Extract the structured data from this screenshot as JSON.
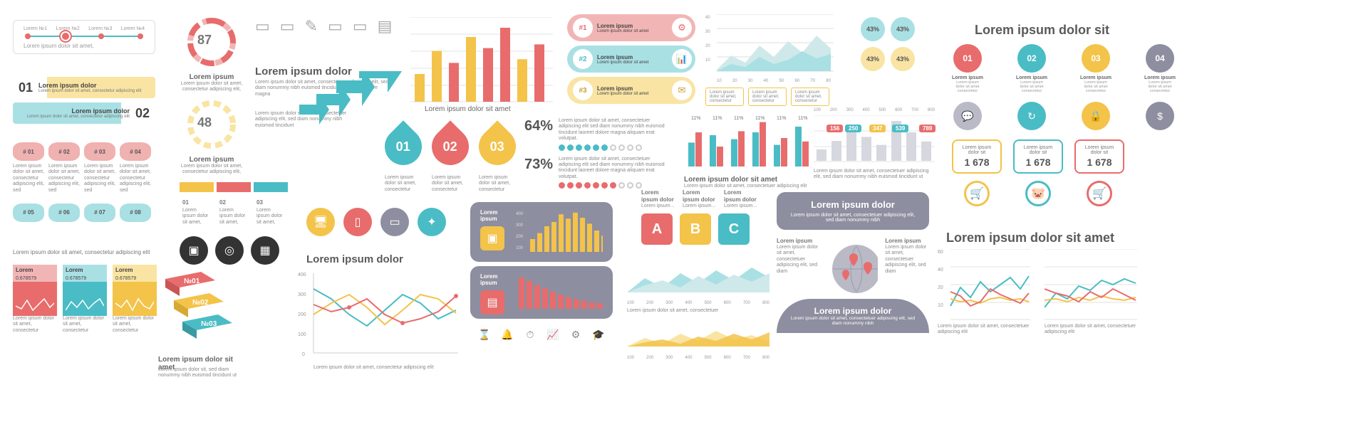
{
  "colors": {
    "red": "#e86c6c",
    "teal": "#4abcc5",
    "yellow": "#f3c34a",
    "grey": "#8d8e9f",
    "light": "#e8e8ee",
    "dark": "#333333"
  },
  "timeline": {
    "labels": [
      "Lorem №1",
      "Lorem №2",
      "Lorem №3",
      "Lorem №4"
    ],
    "active_index": 1,
    "dot_color": "#e86c6c",
    "line_color": "#4abcc5",
    "caption": "Lorem ipsum dolor sit amet,"
  },
  "ribbons": [
    {
      "num": "01",
      "title": "Lorem ipsum dolor",
      "desc": "Lorem ipsum dolor sit amet, consectetur adipiscing elit",
      "bg": "#f9e4a3",
      "num_color": "#333"
    },
    {
      "num": "02",
      "title": "Lorem ipsum dolor",
      "desc": "Lorem ipsum dolor sit amet, consectetur adipiscing elit",
      "bg": "#a9e0e4",
      "num_color": "#333",
      "align": "right"
    }
  ],
  "cylinders": {
    "row1": [
      "# 01",
      "# 02",
      "# 03",
      "# 04"
    ],
    "row1_col": "#f0b1b1",
    "row2": [
      "# 05",
      "# 06",
      "# 07",
      "# 08"
    ],
    "row2_col": "#a9e0e4"
  },
  "spark_cards": {
    "caption": "Lorem ipsum dolor sit amet, consectetur adipiscing elit",
    "items": [
      {
        "label": "Lorem",
        "value": "0.678579",
        "color": "#e86c6c",
        "pts": [
          10,
          6,
          18,
          4,
          12,
          20,
          8,
          14
        ]
      },
      {
        "label": "Lorem",
        "value": "0.678579",
        "color": "#4abcc5",
        "pts": [
          4,
          16,
          8,
          18,
          6,
          14,
          20,
          10
        ]
      },
      {
        "label": "Lorem",
        "value": "0.678579",
        "color": "#f3c34a",
        "pts": [
          14,
          8,
          18,
          4,
          20,
          10,
          6,
          16
        ]
      }
    ],
    "footer": "Lorem ipsum dolor sit amet, consectetur"
  },
  "gauges": [
    {
      "value": "87",
      "color": "#e86c6c",
      "title": "Lorem ipsum",
      "desc": "Lorem ipsum dolor sit amet, consectetur adipiscing elit,"
    },
    {
      "value": "48",
      "color": "#f3c34a",
      "title": "Lorem ipsum",
      "desc": "Lorem ipsum dolor sit amet, consectetur adipiscing elit,"
    }
  ],
  "fold_tabs": {
    "items": [
      {
        "num": "01",
        "top": "#f3c34a",
        "bot": "#fff"
      },
      {
        "num": "02",
        "top": "#e86c6c",
        "bot": "#fff"
      },
      {
        "num": "03",
        "top": "#4abcc5",
        "bot": "#fff"
      }
    ],
    "text": "Lorem ipsum dolor sit amet,"
  },
  "iso_blocks": {
    "items": [
      {
        "label": "№01",
        "color": "#e86c6c"
      },
      {
        "label": "№02",
        "color": "#f3c34a"
      },
      {
        "label": "№03",
        "color": "#4abcc5"
      }
    ],
    "title": "Lorem ipsum dolor sit amet",
    "desc": "Lorem ipsum dolor sit, sed diam nonummy nibh euismod tincidunt ut"
  },
  "icon_row": {
    "title": "Lorem ipsum dolor",
    "desc": "Lorem ipsum dolor sit amet, consectetuer adipiscing elit, sed diam nonummy nibh euismod tincidunt ut laoreet dolore magna",
    "line_icons": [
      "▭",
      "▭",
      "✎",
      "▭",
      "▭",
      "▤"
    ],
    "icons": [
      {
        "bg": "#333333",
        "g": "▣"
      },
      {
        "bg": "#333333",
        "g": "◎"
      },
      {
        "bg": "#333333",
        "g": "▦"
      },
      {
        "bg": "#f3c34a",
        "g": "🖥"
      },
      {
        "bg": "#e86c6c",
        "g": "▯"
      },
      {
        "bg": "#8d8e9f",
        "g": "▭"
      },
      {
        "bg": "#4abcc5",
        "g": "✦"
      }
    ]
  },
  "arrow_steps": {
    "color": "#4abcc5",
    "icons": [
      "▤",
      "◎",
      "▣",
      "▦"
    ],
    "desc": "Lorem ipsum dolor sit amet, consectetuer adipiscing elit, sed diam nonummy nibh euismod tincidunt"
  },
  "line_chart": {
    "title": "Lorem ipsum dolor",
    "ylabels": [
      "400",
      "300",
      "200",
      "100",
      "0"
    ],
    "ylim": [
      0,
      400
    ],
    "series": [
      {
        "color": "#4abcc5",
        "pts": [
          310,
          260,
          180,
          120,
          200,
          280,
          240,
          160,
          200
        ]
      },
      {
        "color": "#f3c34a",
        "pts": [
          180,
          240,
          280,
          210,
          130,
          200,
          280,
          260,
          190
        ]
      },
      {
        "color": "#e86c6c",
        "pts": [
          240,
          200,
          220,
          260,
          180,
          140,
          160,
          200,
          270
        ],
        "markers": true
      }
    ],
    "footer": "Lorem ipsum dolor sit amet, consectetur adipiscing elit"
  },
  "bar_grid": {
    "bars": [
      30,
      55,
      42,
      70,
      58,
      80,
      46,
      62
    ],
    "colors": [
      "#f3c34a",
      "#f3c34a",
      "#e86c6c",
      "#f3c34a",
      "#e86c6c",
      "#e86c6c",
      "#f3c34a",
      "#e86c6c"
    ],
    "caption": "Lorem ipsum dolor sit amet"
  },
  "drops": [
    {
      "label": "01",
      "fill": "#4abcc5"
    },
    {
      "label": "02",
      "fill": "#e86c6c"
    },
    {
      "label": "03",
      "fill": "#f3c34a"
    }
  ],
  "drops_desc": "Lorem ipsum dolor sit amet, consectetur",
  "pills": {
    "items": [
      {
        "k": "#1",
        "title": "Lorem ipsum",
        "desc": "Lorem ipsum dolor sit amet",
        "bg": "#f2b5b5",
        "icon": "⚙",
        "icon_col": "#e86c6c"
      },
      {
        "k": "#2",
        "title": "Lorem ipsum",
        "desc": "Lorem ipsum dolor sit amet",
        "bg": "#a9e0e4",
        "icon": "📊",
        "icon_col": "#4abcc5"
      },
      {
        "k": "#3",
        "title": "Lorem ipsum",
        "desc": "Lorem ipsum dolor sit amet",
        "bg": "#f9e4a3",
        "icon": "✉",
        "icon_col": "#f3c34a"
      }
    ]
  },
  "pct_rows": [
    {
      "pct": "64%",
      "on": "#4abcc5",
      "filled": 6,
      "total": 10,
      "desc": "Lorem ipsum dolor sit amet, consectetuer adipiscing elit sed diam nonummy nibh euismod tincidunt laoreet dolore magna aliquam erat volutpat."
    },
    {
      "pct": "73%",
      "on": "#e86c6c",
      "filled": 7,
      "total": 10,
      "desc": "Lorem ipsum dolor sit amet, consectetuer adipiscing elit sed diam nonummy nibh euismod tincidunt laoreet dolore magna aliquam erat volutpat."
    }
  ],
  "area_chart": {
    "ylabels": [
      "40",
      "30",
      "20",
      "10"
    ],
    "xlabels": [
      "10",
      "20",
      "30",
      "40",
      "50",
      "60",
      "70",
      "80"
    ],
    "series": [
      {
        "fill": "#cfe9ea",
        "pts": [
          12,
          24,
          16,
          30,
          20,
          34,
          24,
          38,
          20
        ]
      },
      {
        "fill": "#a9e0e4",
        "pts": [
          6,
          14,
          10,
          22,
          14,
          18,
          28,
          20,
          26
        ]
      }
    ],
    "footers": [
      "Lorem ipsum dolor sit amet, consectetur",
      "Lorem ipsum dolor sit amet, consectetur",
      "Lorem ipsum dolor sit amet, consectetur"
    ]
  },
  "grouped_bars": {
    "labels": [
      "11%",
      "11%",
      "11%",
      "11%",
      "11%",
      "11%"
    ],
    "groups": [
      [
        42,
        60
      ],
      [
        55,
        35
      ],
      [
        48,
        62
      ],
      [
        60,
        78
      ],
      [
        38,
        50
      ],
      [
        70,
        44
      ]
    ],
    "colors": [
      "#4abcc5",
      "#e86c6c"
    ],
    "caption": "Lorem ipsum dolor sit amet",
    "desc": "Lorem ipsum dolor sit amet, consectetuer adipiscing elit"
  },
  "abc": {
    "title": "Lorem ipsum dolor",
    "sub": "Lorem ipsum...",
    "tiles": [
      {
        "t": "A",
        "c": "#e86c6c"
      },
      {
        "t": "B",
        "c": "#f3c34a"
      },
      {
        "t": "C",
        "c": "#4abcc5"
      }
    ]
  },
  "panel_hist": {
    "title": "Lorem ipsum",
    "ylabels": [
      "400",
      "300",
      "200",
      "100"
    ],
    "bars": [
      30,
      44,
      60,
      70,
      88,
      78,
      92,
      80,
      66,
      50,
      38,
      28
    ],
    "bar_color": "#f3c34a",
    "icon": "▣"
  },
  "panel_bars": {
    "title": "Lorem ipsum",
    "bars": [
      80,
      72,
      60,
      52,
      44,
      36,
      30,
      24,
      20,
      16,
      14,
      12
    ],
    "bar_color": "#e86c6c",
    "icon": "▤"
  },
  "mini_icons": [
    "⌛",
    "🔔",
    "⏱",
    "📈",
    "⚙",
    "🎓"
  ],
  "callout_chart": {
    "xlabels": [
      "100",
      "200",
      "300",
      "400",
      "500",
      "600",
      "700",
      "800"
    ],
    "bars": [
      20,
      35,
      60,
      42,
      28,
      70,
      50,
      34
    ],
    "callouts": [
      {
        "v": "156",
        "c": "#e86c6c",
        "x": 18
      },
      {
        "v": "250",
        "c": "#4abcc5",
        "x": 44
      },
      {
        "v": "347",
        "c": "#f3c34a",
        "x": 78
      },
      {
        "v": "539",
        "c": "#4abcc5",
        "x": 110
      },
      {
        "v": "789",
        "c": "#e86c6c",
        "x": 148
      }
    ],
    "desc": "Lorem ipsum dolor sit amet, consectetuer adipiscing elit, sed diam nonummy nibh euismod tincidunt ut"
  },
  "pbub_grid": {
    "items": [
      {
        "v": "43%",
        "c": "#4abcc5"
      },
      {
        "v": "43%",
        "c": "#4abcc5"
      },
      {
        "v": "43%",
        "c": "#f3c34a"
      },
      {
        "v": "43%",
        "c": "#f3c34a"
      }
    ]
  },
  "dbl_area": {
    "xlabels": [
      "100",
      "200",
      "300",
      "400",
      "500",
      "600",
      "700",
      "800"
    ],
    "top": {
      "fill": "#4abcc5",
      "pts": [
        8,
        22,
        12,
        28,
        16,
        30,
        20,
        34,
        24
      ]
    },
    "bot": {
      "fill": "#f3c34a",
      "pts": [
        6,
        18,
        10,
        24,
        14,
        20,
        26,
        16,
        22
      ]
    },
    "desc": "Lorem ipsum dolor sit amet, consectetuer"
  },
  "globe": {
    "title": "Lorem ipsum dolor",
    "desc": "Lorem ipsum dolor sit amet, consectetuer adipiscing elit, sed diam nonummy nibh",
    "pin_color": "#e86c6c",
    "globe_color": "#b9bac6",
    "panel_title": "Lorem ipsum dolor",
    "panel_desc": "Lorem ipsum dolor sit amet, consectetuer adipiscing elit, sed diam nonummy nibh",
    "side_title": "Lorem ipsum",
    "side_desc": "Lorem ipsum dolor sit amet, consectetuer adipiscing elit, sed diam"
  },
  "title_right": "Lorem ipsum dolor sit",
  "steps4": {
    "items": [
      {
        "n": "01",
        "c": "#e86c6c",
        "icon": "💬",
        "ic": "#e86c6c"
      },
      {
        "n": "02",
        "c": "#4abcc5",
        "icon": "↻",
        "ic": "#4abcc5"
      },
      {
        "n": "03",
        "c": "#f3c34a",
        "icon": "🔒",
        "ic": "#f3c34a"
      },
      {
        "n": "04",
        "c": "#8d8e9f",
        "icon": "$",
        "ic": "#8d8e9f"
      }
    ],
    "t": "Lorem ipsum",
    "d": "Lorem ipsum dolor sit amet consectetur"
  },
  "prices": {
    "items": [
      {
        "v": "1 678",
        "border": "#f3c34a",
        "icon": "🛒",
        "ic": "#f3c34a"
      },
      {
        "v": "1 678",
        "border": "#4abcc5",
        "icon": "🐷",
        "ic": "#4abcc5"
      },
      {
        "v": "1 678",
        "border": "#e86c6c",
        "icon": "🛒",
        "ic": "#e86c6c"
      }
    ],
    "t": "Lorem ipsum dolor sit"
  },
  "title_bottom_right": "Lorem ipsum dolor sit amet",
  "dual_line": {
    "ylabels": [
      "60",
      "40",
      "20",
      "10"
    ],
    "left": {
      "series": [
        {
          "c": "#4abcc5",
          "pts": [
            20,
            44,
            30,
            52,
            36,
            48,
            56,
            40,
            58
          ]
        },
        {
          "c": "#f3c34a",
          "pts": [
            28,
            24,
            26,
            22,
            28,
            30,
            26,
            28,
            24
          ]
        },
        {
          "c": "#e86c6c",
          "pts": [
            36,
            30,
            18,
            22,
            40,
            32,
            28,
            24,
            36
          ]
        }
      ]
    },
    "right": {
      "series": [
        {
          "c": "#4abcc5",
          "pts": [
            18,
            36,
            28,
            46,
            40,
            54,
            48,
            56,
            50
          ]
        },
        {
          "c": "#f3c34a",
          "pts": [
            26,
            28,
            24,
            30,
            26,
            32,
            28,
            26,
            30
          ]
        },
        {
          "c": "#e86c6c",
          "pts": [
            40,
            34,
            30,
            24,
            36,
            28,
            40,
            32,
            26
          ]
        }
      ]
    },
    "caption": "Lorem ipsum dolor sit amet, consectetuer adipiscing elit"
  },
  "lorem_s": "Lorem ipsum dolor sit amet, consectetur adipiscing elit, sed"
}
